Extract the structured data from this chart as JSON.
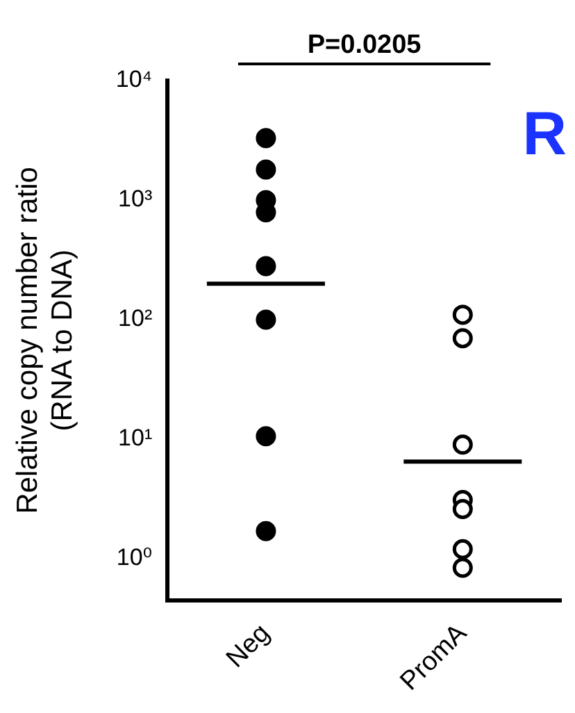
{
  "chart_data": {
    "type": "scatter",
    "title": "P=0.0205",
    "ylabel": "Relative copy number ratio\n(RNA to DNA)",
    "categories": [
      "Neg",
      "PromA"
    ],
    "series": [
      {
        "color": "#000000",
        "marker": "circle",
        "x": [
          "Neg",
          "Neg",
          "Neg",
          "Neg",
          "Neg",
          "Neg",
          "Neg",
          "Neg"
        ],
        "values": [
          3300,
          1800,
          1000,
          790,
          280,
          100,
          10.6,
          1.7
        ]
      },
      {
        "color": "#000000",
        "marker": "circle",
        "x": [
          "PromA",
          "PromA",
          "PromA",
          "PromA",
          "PromA",
          "PromA",
          "PromA"
        ],
        "values": [
          110,
          70,
          9,
          3.1,
          2.6,
          1.2,
          0.84
        ]
      }
    ],
    "ref_lines": [
      {
        "axis": "y",
        "value": 200,
        "color": "#000000"
      },
      {
        "axis": "y",
        "value": 6.5,
        "color": "#000000"
      }
    ],
    "log": "y",
    "ylim": [
      0.45,
      10000
    ],
    "yticks": [
      {
        "value": 1,
        "label": "10⁰"
      },
      {
        "value": 10,
        "label": "10¹"
      },
      {
        "value": 100,
        "label": "10²"
      },
      {
        "value": 1000,
        "label": "10³"
      },
      {
        "value": 10000,
        "label": "10⁴"
      }
    ],
    "grid": false,
    "legend": false,
    "annotations": [
      "R"
    ]
  }
}
